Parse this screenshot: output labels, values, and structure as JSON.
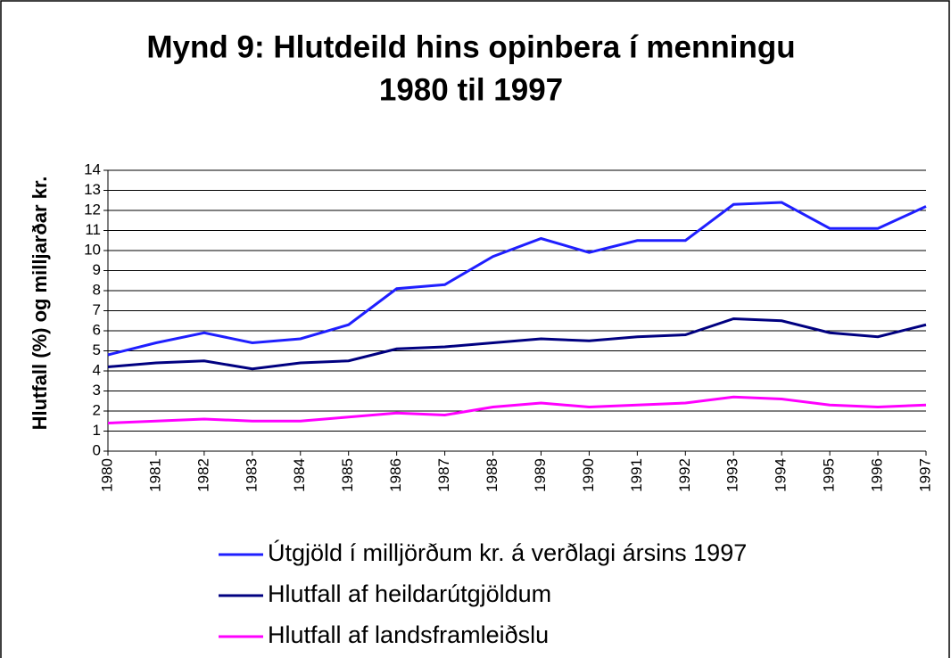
{
  "chart_data": {
    "type": "line",
    "title": [
      "Mynd 9: Hlutdeild hins opinbera í menningu",
      "1980 til 1997"
    ],
    "y_label": "Hlutfall (%) og milljarðar kr.",
    "categories": [
      "1980",
      "1981",
      "1982",
      "1983",
      "1984",
      "1985",
      "1986",
      "1987",
      "1988",
      "1989",
      "1990",
      "1991",
      "1992",
      "1993",
      "1994",
      "1995",
      "1996",
      "1997"
    ],
    "series": [
      {
        "name": "Útgjöld í milljörðum kr. á verðlagi ársins 1997",
        "color": "#1f1fff",
        "values": [
          4.8,
          5.4,
          5.9,
          5.4,
          5.6,
          6.3,
          8.1,
          8.3,
          9.7,
          10.6,
          9.9,
          10.5,
          10.5,
          12.3,
          12.4,
          11.1,
          11.1,
          12.2
        ]
      },
      {
        "name": "Hlutfall af heildarútgjöldum",
        "color": "#000080",
        "values": [
          4.2,
          4.4,
          4.5,
          4.1,
          4.4,
          4.5,
          5.1,
          5.2,
          5.4,
          5.6,
          5.5,
          5.7,
          5.8,
          6.6,
          6.5,
          5.9,
          5.7,
          6.3
        ]
      },
      {
        "name": "Hlutfall af landsframleiðslu",
        "color": "#ff00ff",
        "values": [
          1.4,
          1.5,
          1.6,
          1.5,
          1.5,
          1.7,
          1.9,
          1.8,
          2.2,
          2.4,
          2.2,
          2.3,
          2.4,
          2.7,
          2.6,
          2.3,
          2.2,
          2.3
        ]
      }
    ],
    "ylim": [
      0,
      14
    ],
    "yticks": [
      0,
      1,
      2,
      3,
      4,
      5,
      6,
      7,
      8,
      9,
      10,
      11,
      12,
      13,
      14
    ],
    "grid": true
  }
}
